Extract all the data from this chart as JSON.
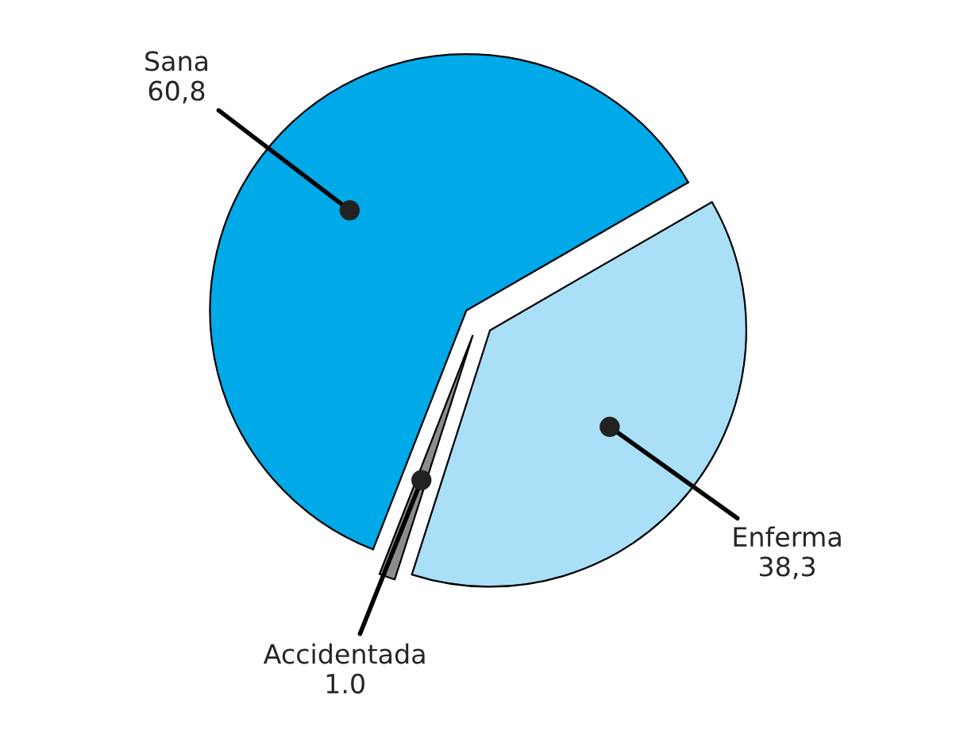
{
  "chart_data": {
    "type": "pie",
    "categories": [
      "Sana",
      "Accidentada",
      "Enferma"
    ],
    "values": [
      60.8,
      1.0,
      38.3
    ],
    "value_labels": [
      "60,8",
      "1.0",
      "38,3"
    ],
    "colors": [
      "#00a9e8",
      "#8c8c8c",
      "#a9dff7"
    ]
  }
}
